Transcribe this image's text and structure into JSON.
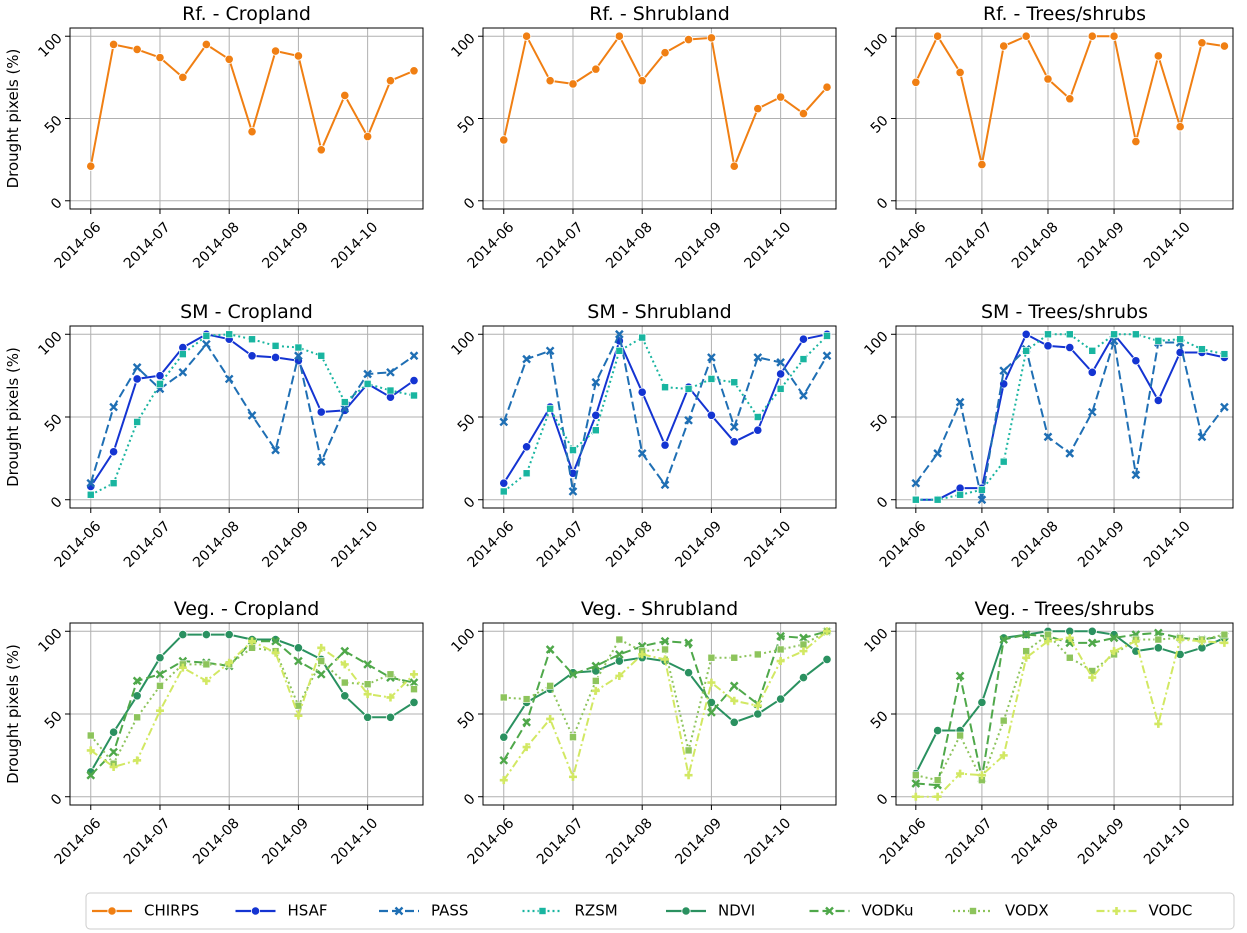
{
  "figure": {
    "ylabel": "Drought pixels (%)",
    "legend": [
      {
        "name": "CHIRPS",
        "color": "#f07f13",
        "style": "solid",
        "marker": "circle"
      },
      {
        "name": "HSAF",
        "color": "#1434d2",
        "style": "solid",
        "marker": "circle"
      },
      {
        "name": "PASS",
        "color": "#1f6fb4",
        "style": "dashed",
        "marker": "x"
      },
      {
        "name": "RZSM",
        "color": "#19b5a0",
        "style": "dotted",
        "marker": "square"
      },
      {
        "name": "NDVI",
        "color": "#2a9160",
        "style": "solid",
        "marker": "circle"
      },
      {
        "name": "VODKu",
        "color": "#4fa84a",
        "style": "dashed",
        "marker": "x"
      },
      {
        "name": "VODX",
        "color": "#8dc45c",
        "style": "dotted",
        "marker": "square"
      },
      {
        "name": "VODC",
        "color": "#d2e863",
        "style": "dashdot",
        "marker": "plus"
      }
    ]
  },
  "chart_data": [
    {
      "type": "line",
      "title": "Rf. - Cropland",
      "ylabel": "Drought pixels (%)",
      "ylim": [
        -5,
        105
      ],
      "yticks": [
        0,
        50,
        100
      ],
      "xticks": [
        "2014-06",
        "2014-07",
        "2014-08",
        "2014-09",
        "2014-10"
      ],
      "x_range": [
        -0.3,
        4.8
      ],
      "series": [
        {
          "name": "CHIRPS",
          "x": [
            0,
            0.33,
            0.67,
            1,
            1.33,
            1.67,
            2,
            2.33,
            2.67,
            3,
            3.33,
            3.67,
            4,
            4.33,
            4.67
          ],
          "values": [
            21,
            95,
            92,
            87,
            75,
            95,
            86,
            42,
            91,
            88,
            31,
            64,
            39,
            73,
            79
          ]
        }
      ]
    },
    {
      "type": "line",
      "title": "Rf. - Shrubland",
      "ylabel": "",
      "ylim": [
        -5,
        105
      ],
      "yticks": [
        0,
        50,
        100
      ],
      "xticks": [
        "2014-06",
        "2014-07",
        "2014-08",
        "2014-09",
        "2014-10"
      ],
      "x_range": [
        -0.3,
        4.8
      ],
      "series": [
        {
          "name": "CHIRPS",
          "x": [
            0,
            0.33,
            0.67,
            1,
            1.33,
            1.67,
            2,
            2.33,
            2.67,
            3,
            3.33,
            3.67,
            4,
            4.33,
            4.67
          ],
          "values": [
            37,
            100,
            73,
            71,
            80,
            100,
            73,
            90,
            98,
            99,
            21,
            56,
            63,
            53,
            69
          ]
        }
      ]
    },
    {
      "type": "line",
      "title": "Rf. - Trees/shrubs",
      "ylabel": "",
      "ylim": [
        -5,
        105
      ],
      "yticks": [
        0,
        50,
        100
      ],
      "xticks": [
        "2014-06",
        "2014-07",
        "2014-08",
        "2014-09",
        "2014-10"
      ],
      "x_range": [
        -0.3,
        4.8
      ],
      "series": [
        {
          "name": "CHIRPS",
          "x": [
            0,
            0.33,
            0.67,
            1,
            1.33,
            1.67,
            2,
            2.33,
            2.67,
            3,
            3.33,
            3.67,
            4,
            4.33,
            4.67
          ],
          "values": [
            72,
            100,
            78,
            22,
            94,
            100,
            74,
            62,
            100,
            100,
            36,
            88,
            45,
            96,
            94
          ]
        }
      ]
    },
    {
      "type": "line",
      "title": "SM - Cropland",
      "ylabel": "Drought pixels (%)",
      "ylim": [
        -5,
        105
      ],
      "yticks": [
        0,
        50,
        100
      ],
      "xticks": [
        "2014-06",
        "2014-07",
        "2014-08",
        "2014-09",
        "2014-10"
      ],
      "x_range": [
        -0.3,
        4.8
      ],
      "series": [
        {
          "name": "HSAF",
          "x": [
            0,
            0.33,
            0.67,
            1,
            1.33,
            1.67,
            2,
            2.33,
            2.67,
            3,
            3.33,
            3.67,
            4,
            4.33,
            4.67
          ],
          "values": [
            8,
            29,
            73,
            75,
            92,
            100,
            97,
            87,
            86,
            84,
            53,
            54,
            70,
            62,
            72
          ]
        },
        {
          "name": "PASS",
          "x": [
            0,
            0.33,
            0.67,
            1,
            1.33,
            1.67,
            2,
            2.33,
            2.67,
            3,
            3.33,
            3.67,
            4,
            4.33,
            4.67
          ],
          "values": [
            10,
            56,
            80,
            67,
            77,
            94,
            73,
            51,
            30,
            87,
            23,
            55,
            76,
            77,
            87
          ]
        },
        {
          "name": "RZSM",
          "x": [
            0,
            0.33,
            0.67,
            1,
            1.33,
            1.67,
            2,
            2.33,
            2.67,
            3,
            3.33,
            3.67,
            4,
            4.33,
            4.67
          ],
          "values": [
            3,
            10,
            47,
            70,
            88,
            99,
            100,
            97,
            93,
            92,
            87,
            59,
            70,
            66,
            63
          ]
        }
      ]
    },
    {
      "type": "line",
      "title": "SM - Shrubland",
      "ylabel": "",
      "ylim": [
        -5,
        105
      ],
      "yticks": [
        0,
        50,
        100
      ],
      "xticks": [
        "2014-06",
        "2014-07",
        "2014-08",
        "2014-09",
        "2014-10"
      ],
      "x_range": [
        -0.3,
        4.8
      ],
      "series": [
        {
          "name": "HSAF",
          "x": [
            0,
            0.33,
            0.67,
            1,
            1.33,
            1.67,
            2,
            2.33,
            2.67,
            3,
            3.33,
            3.67,
            4,
            4.33,
            4.67
          ],
          "values": [
            10,
            32,
            56,
            16,
            51,
            96,
            65,
            33,
            68,
            51,
            35,
            42,
            76,
            97,
            100
          ]
        },
        {
          "name": "PASS",
          "x": [
            0,
            0.33,
            0.67,
            1,
            1.33,
            1.67,
            2,
            2.33,
            2.67,
            3,
            3.33,
            3.67,
            4,
            4.33,
            4.67
          ],
          "values": [
            47,
            85,
            90,
            5,
            71,
            100,
            28,
            9,
            48,
            86,
            44,
            86,
            83,
            63,
            87
          ]
        },
        {
          "name": "RZSM",
          "x": [
            0,
            0.33,
            0.67,
            1,
            1.33,
            1.67,
            2,
            2.33,
            2.67,
            3,
            3.33,
            3.67,
            4,
            4.33,
            4.67
          ],
          "values": [
            5,
            16,
            55,
            30,
            42,
            90,
            98,
            68,
            67,
            73,
            71,
            50,
            67,
            85,
            99
          ]
        }
      ]
    },
    {
      "type": "line",
      "title": "SM - Trees/shrubs",
      "ylabel": "",
      "ylim": [
        -5,
        105
      ],
      "yticks": [
        0,
        50,
        100
      ],
      "xticks": [
        "2014-06",
        "2014-07",
        "2014-08",
        "2014-09",
        "2014-10"
      ],
      "x_range": [
        -0.3,
        4.8
      ],
      "series": [
        {
          "name": "HSAF",
          "x": [
            0,
            0.33,
            0.67,
            1,
            1.33,
            1.67,
            2,
            2.33,
            2.67,
            3,
            3.33,
            3.67,
            4,
            4.33,
            4.67
          ],
          "values": [
            0,
            0,
            7,
            7,
            70,
            100,
            93,
            92,
            77,
            100,
            84,
            60,
            89,
            89,
            86
          ]
        },
        {
          "name": "PASS",
          "x": [
            0,
            0.33,
            0.67,
            1,
            1.33,
            1.67,
            2,
            2.33,
            2.67,
            3,
            3.33,
            3.67,
            4,
            4.33,
            4.67
          ],
          "values": [
            10,
            28,
            59,
            0,
            78,
            91,
            38,
            28,
            53,
            96,
            15,
            95,
            95,
            38,
            56
          ]
        },
        {
          "name": "RZSM",
          "x": [
            0,
            0.33,
            0.67,
            1,
            1.33,
            1.67,
            2,
            2.33,
            2.67,
            3,
            3.33,
            3.67,
            4,
            4.33,
            4.67
          ],
          "values": [
            0,
            0,
            3,
            6,
            23,
            90,
            100,
            100,
            90,
            100,
            100,
            96,
            97,
            91,
            88
          ]
        }
      ]
    },
    {
      "type": "line",
      "title": "Veg. - Cropland",
      "ylabel": "Drought pixels (%)",
      "ylim": [
        -5,
        105
      ],
      "yticks": [
        0,
        50,
        100
      ],
      "xticks": [
        "2014-06",
        "2014-07",
        "2014-08",
        "2014-09",
        "2014-10"
      ],
      "x_range": [
        -0.3,
        4.8
      ],
      "series": [
        {
          "name": "NDVI",
          "x": [
            0,
            0.33,
            0.67,
            1,
            1.33,
            1.67,
            2,
            2.33,
            2.67,
            3,
            3.33,
            3.67,
            4,
            4.33,
            4.67
          ],
          "values": [
            15,
            39,
            61,
            84,
            98,
            98,
            98,
            95,
            95,
            90,
            83,
            61,
            48,
            48,
            57
          ]
        },
        {
          "name": "VODKu",
          "x": [
            0,
            0.33,
            0.67,
            1,
            1.33,
            1.67,
            2,
            2.33,
            2.67,
            3,
            3.33,
            3.67,
            4,
            4.33,
            4.67
          ],
          "values": [
            13,
            27,
            70,
            74,
            82,
            81,
            79,
            94,
            94,
            82,
            74,
            88,
            80,
            72,
            69
          ]
        },
        {
          "name": "VODX",
          "x": [
            0,
            0.33,
            0.67,
            1,
            1.33,
            1.67,
            2,
            2.33,
            2.67,
            3,
            3.33,
            3.67,
            4,
            4.33,
            4.67
          ],
          "values": [
            37,
            20,
            48,
            67,
            80,
            80,
            80,
            90,
            88,
            55,
            82,
            69,
            68,
            74,
            65
          ]
        },
        {
          "name": "VODC",
          "x": [
            0,
            0.33,
            0.67,
            1,
            1.33,
            1.67,
            2,
            2.33,
            2.67,
            3,
            3.33,
            3.67,
            4,
            4.33,
            4.67
          ],
          "values": [
            28,
            18,
            22,
            52,
            78,
            70,
            81,
            94,
            87,
            49,
            90,
            80,
            62,
            60,
            74
          ]
        }
      ]
    },
    {
      "type": "line",
      "title": "Veg. - Shrubland",
      "ylabel": "",
      "ylim": [
        -5,
        105
      ],
      "yticks": [
        0,
        50,
        100
      ],
      "xticks": [
        "2014-06",
        "2014-07",
        "2014-08",
        "2014-09",
        "2014-10"
      ],
      "x_range": [
        -0.3,
        4.8
      ],
      "series": [
        {
          "name": "NDVI",
          "x": [
            0,
            0.33,
            0.67,
            1,
            1.33,
            1.67,
            2,
            2.33,
            2.67,
            3,
            3.33,
            3.67,
            4,
            4.33,
            4.67
          ],
          "values": [
            36,
            57,
            65,
            75,
            76,
            82,
            84,
            82,
            75,
            57,
            45,
            50,
            59,
            72,
            83
          ]
        },
        {
          "name": "VODKu",
          "x": [
            0,
            0.33,
            0.67,
            1,
            1.33,
            1.67,
            2,
            2.33,
            2.67,
            3,
            3.33,
            3.67,
            4,
            4.33,
            4.67
          ],
          "values": [
            22,
            45,
            89,
            74,
            79,
            86,
            91,
            94,
            93,
            51,
            67,
            56,
            97,
            96,
            100
          ]
        },
        {
          "name": "VODX",
          "x": [
            0,
            0.33,
            0.67,
            1,
            1.33,
            1.67,
            2,
            2.33,
            2.67,
            3,
            3.33,
            3.67,
            4,
            4.33,
            4.67
          ],
          "values": [
            60,
            59,
            67,
            36,
            70,
            95,
            88,
            89,
            28,
            84,
            84,
            86,
            89,
            92,
            100
          ]
        },
        {
          "name": "VODC",
          "x": [
            0,
            0.33,
            0.67,
            1,
            1.33,
            1.67,
            2,
            2.33,
            2.67,
            3,
            3.33,
            3.67,
            4,
            4.33,
            4.67
          ],
          "values": [
            10,
            30,
            47,
            12,
            64,
            73,
            86,
            83,
            13,
            69,
            58,
            55,
            82,
            88,
            100
          ]
        }
      ]
    },
    {
      "type": "line",
      "title": "Veg. - Trees/shrubs",
      "ylabel": "",
      "ylim": [
        -5,
        105
      ],
      "yticks": [
        0,
        50,
        100
      ],
      "xticks": [
        "2014-06",
        "2014-07",
        "2014-08",
        "2014-09",
        "2014-10"
      ],
      "x_range": [
        -0.3,
        4.8
      ],
      "series": [
        {
          "name": "NDVI",
          "x": [
            0,
            0.33,
            0.67,
            1,
            1.33,
            1.67,
            2,
            2.33,
            2.67,
            3,
            3.33,
            3.67,
            4,
            4.33,
            4.67
          ],
          "values": [
            14,
            40,
            40,
            57,
            96,
            98,
            100,
            100,
            100,
            98,
            88,
            90,
            86,
            90,
            96
          ]
        },
        {
          "name": "VODKu",
          "x": [
            0,
            0.33,
            0.67,
            1,
            1.33,
            1.67,
            2,
            2.33,
            2.67,
            3,
            3.33,
            3.67,
            4,
            4.33,
            4.67
          ],
          "values": [
            8,
            7,
            73,
            11,
            95,
            98,
            97,
            93,
            93,
            96,
            98,
            99,
            96,
            95,
            97
          ]
        },
        {
          "name": "VODX",
          "x": [
            0,
            0.33,
            0.67,
            1,
            1.33,
            1.67,
            2,
            2.33,
            2.67,
            3,
            3.33,
            3.67,
            4,
            4.33,
            4.67
          ],
          "values": [
            13,
            10,
            37,
            10,
            46,
            88,
            98,
            84,
            76,
            86,
            95,
            95,
            96,
            95,
            98
          ]
        },
        {
          "name": "VODC",
          "x": [
            0,
            0.33,
            0.67,
            1,
            1.33,
            1.67,
            2,
            2.33,
            2.67,
            3,
            3.33,
            3.67,
            4,
            4.33,
            4.67
          ],
          "values": [
            0,
            0,
            14,
            13,
            25,
            84,
            94,
            96,
            72,
            88,
            94,
            44,
            95,
            94,
            93
          ]
        }
      ]
    }
  ]
}
